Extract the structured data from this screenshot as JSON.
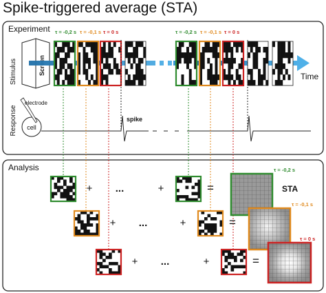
{
  "title": "Spike-triggered average (STA)",
  "experiment": {
    "panel_label": "Experiment",
    "stimulus_label": "Stimulus",
    "screen_label": "Screen",
    "time_label": "Time",
    "response_label": "Response",
    "electrode_label": "electrode",
    "cell_label": "cell",
    "spike_label": "spike",
    "tau_labels": [
      {
        "text": "τ = -0,2 s",
        "color": "#2e8b2e"
      },
      {
        "text": "τ = -0,1 s",
        "color": "#e08a1e"
      },
      {
        "text": "τ = 0 s",
        "color": "#cc2222"
      }
    ]
  },
  "analysis": {
    "panel_label": "Analysis",
    "plus": "+",
    "ellipsis": "...",
    "equals": "=",
    "sta_label": "STA",
    "rows": [
      {
        "color": "#2e8b2e",
        "tau": "τ = -0,2 s"
      },
      {
        "color": "#e08a1e",
        "tau": "τ = -0,1 s"
      },
      {
        "color": "#cc2222",
        "tau": "τ = 0 s"
      }
    ]
  },
  "colors": {
    "arrow": "#2a8fd0",
    "green": "#2e8b2e",
    "orange": "#e08a1e",
    "red": "#cc2222"
  }
}
